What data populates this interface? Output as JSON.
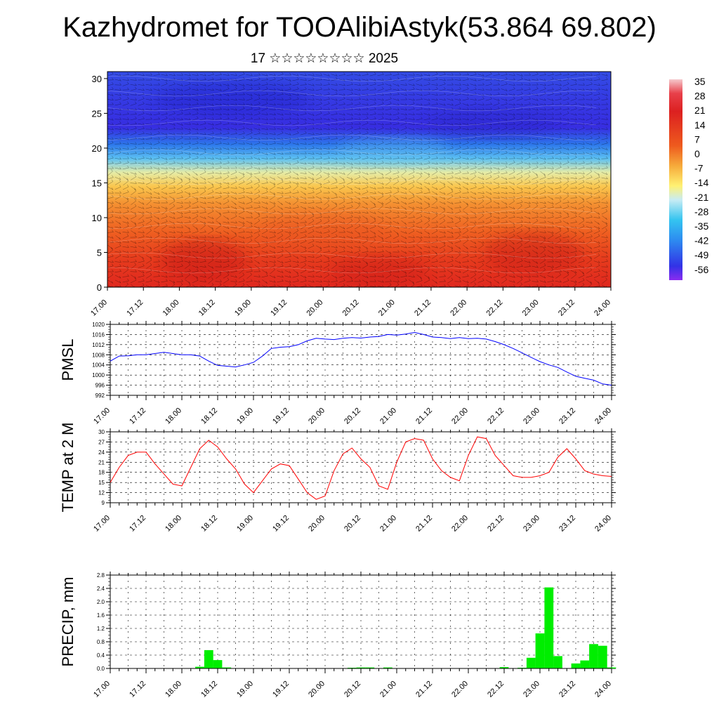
{
  "title": "Kazhydromet for TOOAlibiAstyk(53.864 69.802)",
  "subtitle": "17 ☆☆☆☆☆☆☆☆ 2025",
  "x_ticks": [
    "17.00",
    "17.12",
    "18.00",
    "18.12",
    "19.00",
    "19.12",
    "20.00",
    "20.12",
    "21.00",
    "21.12",
    "22.00",
    "22.12",
    "23.00",
    "23.12",
    "24.00"
  ],
  "colorbar": {
    "labels": [
      "35",
      "28",
      "21",
      "14",
      "7",
      "0",
      "-7",
      "-14",
      "-21",
      "-28",
      "-35",
      "-42",
      "-49",
      "-56"
    ]
  },
  "chart_data": [
    {
      "type": "heatmap",
      "name": "cross-section",
      "xlabel": "",
      "ylabel": "",
      "ylim": [
        0,
        31
      ],
      "y_ticks": [
        0,
        5,
        10,
        15,
        20,
        25,
        30
      ],
      "x_ticks": [
        "17.00",
        "17.12",
        "18.00",
        "18.12",
        "19.00",
        "19.12",
        "20.00",
        "20.12",
        "21.00",
        "21.12",
        "22.00",
        "22.12",
        "23.00",
        "23.12",
        "24.00"
      ],
      "profile": [
        {
          "y": 0,
          "v": 21
        },
        {
          "y": 4,
          "v": 18
        },
        {
          "y": 8,
          "v": 12
        },
        {
          "y": 12,
          "v": 5
        },
        {
          "y": 14.5,
          "v": -2
        },
        {
          "y": 16.5,
          "v": -12
        },
        {
          "y": 18.5,
          "v": -25
        },
        {
          "y": 20.5,
          "v": -38
        },
        {
          "y": 23,
          "v": -50
        },
        {
          "y": 27,
          "v": -48
        },
        {
          "y": 31,
          "v": -45
        }
      ],
      "overlay": "wind barbs",
      "colors": [
        "#b8dff0",
        "#e04020",
        "#fff170",
        "#3a3af0"
      ]
    },
    {
      "type": "line",
      "ylabel": "PMSL",
      "ylim": [
        992,
        1020
      ],
      "y_ticks": [
        992,
        996,
        1000,
        1004,
        1008,
        1012,
        1016,
        1020
      ],
      "x_ticks": [
        "17.00",
        "17.12",
        "18.00",
        "18.12",
        "19.00",
        "19.12",
        "20.00",
        "20.12",
        "21.00",
        "21.12",
        "22.00",
        "22.12",
        "23.00",
        "23.12",
        "24.00"
      ],
      "color": "#0000ff",
      "x": [
        0,
        3,
        6,
        9,
        12,
        15,
        18,
        21,
        24,
        27,
        30,
        33,
        36,
        39,
        42,
        45,
        48,
        51,
        54,
        57,
        60,
        63,
        66,
        69,
        72,
        75,
        78,
        81,
        84,
        87,
        90,
        93,
        96,
        99,
        102,
        105,
        108,
        111,
        114,
        117,
        120,
        123,
        126,
        129,
        132,
        135,
        138,
        141,
        144,
        147,
        150,
        153,
        156,
        159,
        162,
        165,
        168
      ],
      "values": [
        1005.5,
        1007.5,
        1007.6,
        1008.0,
        1008.0,
        1008.5,
        1009.0,
        1008.5,
        1008.0,
        1008.0,
        1007.5,
        1005.5,
        1003.8,
        1003.5,
        1003.2,
        1004.0,
        1005.0,
        1007.5,
        1010.5,
        1011.0,
        1011.2,
        1012.0,
        1013.5,
        1014.5,
        1014.2,
        1014.0,
        1014.5,
        1014.8,
        1014.6,
        1015.0,
        1015.2,
        1016.0,
        1015.8,
        1016.2,
        1016.8,
        1016.0,
        1015.0,
        1014.8,
        1014.4,
        1014.8,
        1014.4,
        1014.5,
        1014.2,
        1013.2,
        1012.0,
        1010.5,
        1008.8,
        1007.0,
        1005.3,
        1004.0,
        1003.0,
        1001.2,
        999.5,
        998.7,
        998.0,
        996.5,
        996.0
      ]
    },
    {
      "type": "line",
      "ylabel": "TEMP at 2 M",
      "ylim": [
        9,
        30
      ],
      "y_ticks": [
        9,
        12,
        15,
        18,
        21,
        24,
        27,
        30
      ],
      "x_ticks": [
        "17.00",
        "17.12",
        "18.00",
        "18.12",
        "19.00",
        "19.12",
        "20.00",
        "20.12",
        "21.00",
        "21.12",
        "22.00",
        "22.12",
        "23.00",
        "23.12",
        "24.00"
      ],
      "color": "#ff0000",
      "x": [
        0,
        3,
        6,
        9,
        12,
        15,
        18,
        21,
        24,
        27,
        30,
        33,
        36,
        39,
        42,
        45,
        48,
        51,
        54,
        57,
        60,
        63,
        66,
        69,
        72,
        75,
        78,
        81,
        84,
        87,
        90,
        93,
        96,
        99,
        102,
        105,
        108,
        111,
        114,
        117,
        120,
        123,
        126,
        129,
        132,
        135,
        138,
        141,
        144,
        147,
        150,
        153,
        156,
        159,
        162,
        165,
        168
      ],
      "values": [
        15.0,
        19.5,
        23.0,
        24.0,
        24.0,
        20.5,
        17.5,
        14.5,
        14.0,
        19.5,
        25.0,
        27.5,
        25.5,
        22.0,
        19.0,
        14.5,
        12.0,
        15.5,
        19.0,
        20.5,
        20.0,
        16.0,
        12.0,
        10.0,
        11.0,
        18.5,
        23.5,
        25.2,
        22.0,
        19.5,
        14.0,
        13.0,
        21.0,
        27.0,
        28.0,
        27.5,
        22.0,
        18.5,
        16.5,
        15.5,
        23.0,
        28.5,
        28.0,
        23.0,
        20.0,
        17.0,
        16.5,
        16.5,
        17.0,
        18.0,
        22.5,
        25.0,
        22.0,
        18.5,
        17.5,
        17.0,
        16.8
      ]
    },
    {
      "type": "bar",
      "ylabel": "PRECIP, mm",
      "ylim": [
        0,
        2.8
      ],
      "y_ticks": [
        "0.0",
        "0.4",
        "0.8",
        "1.2",
        "1.6",
        "2.0",
        "2.4",
        "2.8"
      ],
      "x_ticks": [
        "17.00",
        "17.12",
        "18.00",
        "18.12",
        "19.00",
        "19.12",
        "20.00",
        "20.12",
        "21.00",
        "21.12",
        "22.00",
        "22.12",
        "23.00",
        "23.12",
        "24.00"
      ],
      "color": "#00ee00",
      "bar_width_hours": 3,
      "x": [
        30,
        33,
        36,
        39,
        81,
        84,
        87,
        90,
        93,
        114,
        132,
        138,
        141,
        144,
        147,
        150,
        153,
        156,
        159,
        162,
        165,
        168
      ],
      "values": [
        0.05,
        0.55,
        0.25,
        0.03,
        0.02,
        0.03,
        0.03,
        0.01,
        0.03,
        0.01,
        0.04,
        0.02,
        0.32,
        1.05,
        2.43,
        0.37,
        0.0,
        0.15,
        0.24,
        0.73,
        0.68,
        0.03
      ]
    }
  ]
}
